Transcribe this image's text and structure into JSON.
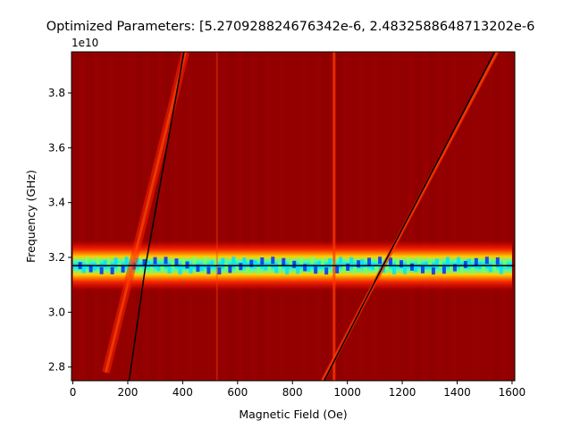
{
  "chart_data": {
    "type": "heatmap",
    "title": "Optimized Parameters: [5.270928824676342e-6, 2.4832588648713202e-6",
    "xlabel": "Magnetic Field (Oe)",
    "ylabel": "Frequency (GHz)",
    "y_offset_label": "1e10",
    "xlim": [
      -5,
      1610
    ],
    "ylim": [
      2.75,
      3.95
    ],
    "x_ticks": [
      0,
      200,
      400,
      600,
      800,
      1000,
      1200,
      1400,
      1600
    ],
    "x_tick_labels": [
      "0",
      "200",
      "400",
      "600",
      "800",
      "1000",
      "1200",
      "1400",
      "1600"
    ],
    "y_ticks": [
      2.8,
      3.0,
      3.2,
      3.4,
      3.6,
      3.8
    ],
    "y_tick_labels": [
      "2.8",
      "3.0",
      "3.2",
      "3.4",
      "3.6",
      "3.8"
    ],
    "colormap": "jet",
    "background_color": "#8b0000",
    "heatmap_features": {
      "horizontal_band_center": 3.17,
      "horizontal_band_x_range": [
        0,
        1600
      ],
      "diagonal_band_1": [
        [
          120,
          2.78
        ],
        [
          410,
          3.95
        ]
      ],
      "diagonal_band_2": [
        [
          910,
          2.75
        ],
        [
          1545,
          3.95
        ]
      ],
      "vertical_lines_x": [
        525,
        950
      ]
    },
    "fit_lines": [
      {
        "points": [
          [
            205,
            2.75
          ],
          [
            262,
            3.15
          ],
          [
            265,
            3.17
          ],
          [
            405,
            3.95
          ]
        ]
      },
      {
        "points": [
          [
            915,
            2.75
          ],
          [
            1120,
            3.15
          ],
          [
            1130,
            3.17
          ],
          [
            1537,
            3.95
          ]
        ]
      },
      {
        "points": [
          [
            0,
            3.17
          ],
          [
            1610,
            3.17
          ]
        ]
      }
    ]
  }
}
